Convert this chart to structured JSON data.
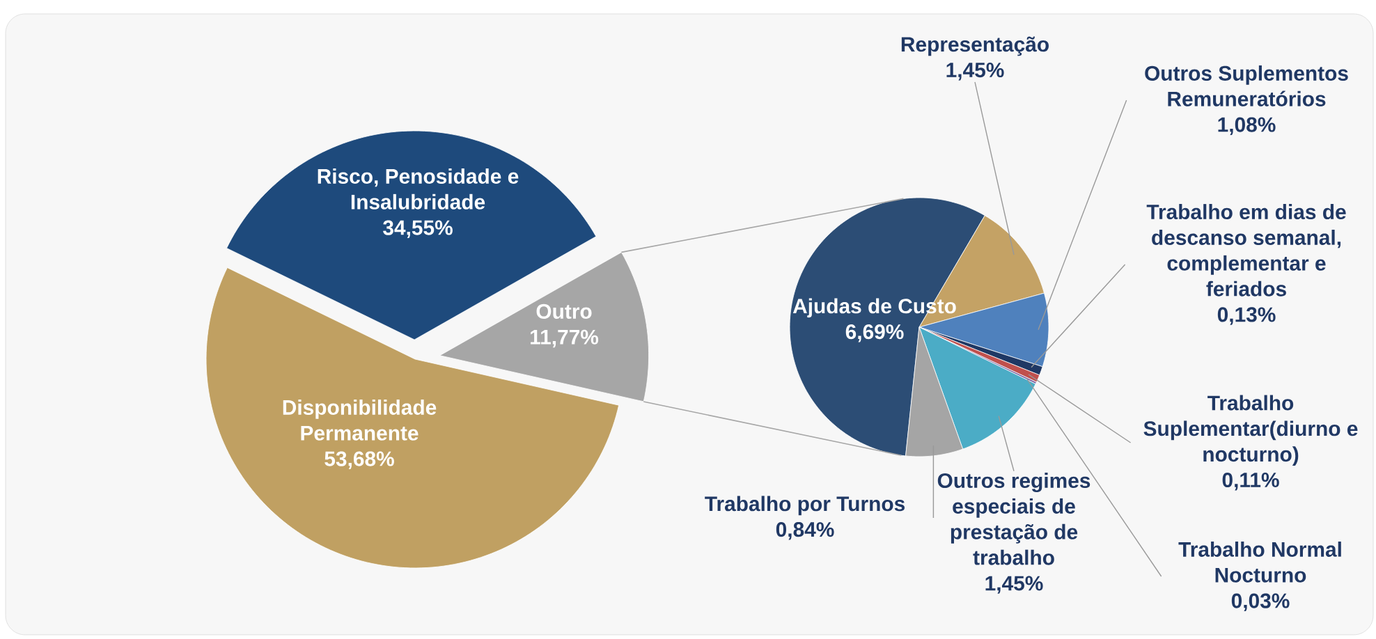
{
  "chart_data": [
    {
      "type": "pie",
      "categories": [
        "Risco, Penosidade e Insalubridade",
        "Outro",
        "Disponibilidade Permanente"
      ],
      "values": [
        34.55,
        11.77,
        53.68
      ],
      "colors": [
        "#1e4a7c",
        "#a6a6a6",
        "#c0a062"
      ],
      "value_labels": [
        "34,55%",
        "11,77%",
        "53,68%"
      ]
    },
    {
      "type": "pie",
      "categories": [
        "Ajudas de Custo",
        "Representação",
        "Outros Suplementos Remuneratórios",
        "Trabalho em dias de descanso semanal, complementar e feriados",
        "Trabalho Suplementar(diurno e nocturno)",
        "Trabalho Normal Nocturno",
        "Outros regimes especiais de prestação de trabalho",
        "Trabalho por Turnos"
      ],
      "values": [
        6.69,
        1.45,
        1.08,
        0.13,
        0.11,
        0.03,
        1.45,
        0.84
      ],
      "colors": [
        "#2c4d75",
        "#c4a265",
        "#4f81bd",
        "#1f3864",
        "#c0504d",
        "#8064a2",
        "#4bacc6",
        "#a5a5a5"
      ],
      "value_labels": [
        "6,69%",
        "1,45%",
        "1,08%",
        "0,13%",
        "0,11%",
        "0,03%",
        "1,45%",
        "0,84%"
      ]
    }
  ]
}
